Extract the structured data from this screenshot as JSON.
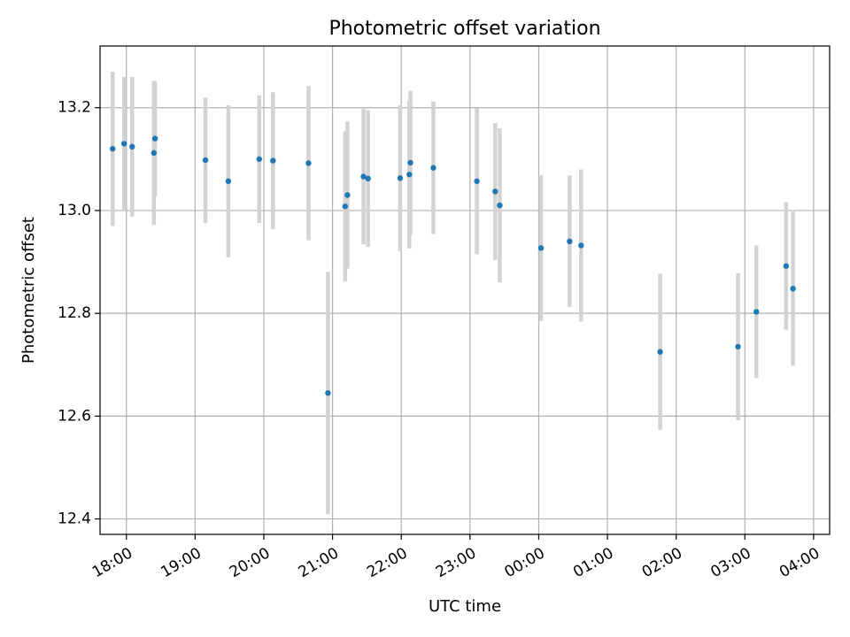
{
  "chart_data": {
    "type": "scatter",
    "title": "Photometric offset variation",
    "xlabel": "UTC time",
    "ylabel": "Photometric offset",
    "x_tick_labels": [
      "18:00",
      "19:00",
      "20:00",
      "21:00",
      "22:00",
      "23:00",
      "00:00",
      "01:00",
      "02:00",
      "03:00",
      "04:00"
    ],
    "y_tick_labels": [
      "12.4",
      "12.6",
      "12.8",
      "13.0",
      "13.2"
    ],
    "y_ticks": [
      12.4,
      12.6,
      12.8,
      13.0,
      13.2
    ],
    "ylim": [
      12.37,
      13.32
    ],
    "xlim": [
      "17:37",
      "04:14"
    ],
    "grid": true,
    "colors": {
      "points": "#1f77b4",
      "error_bars": "#d3d3d3",
      "grid": "#b0b0b0"
    },
    "points": [
      {
        "x": "17:48",
        "y": 13.12,
        "err": 0.15
      },
      {
        "x": "17:58",
        "y": 13.13,
        "err": 0.13
      },
      {
        "x": "18:05",
        "y": 13.124,
        "err": 0.136
      },
      {
        "x": "18:24",
        "y": 13.112,
        "err": 0.14
      },
      {
        "x": "18:25",
        "y": 13.14,
        "err": 0.112
      },
      {
        "x": "19:09",
        "y": 13.098,
        "err": 0.122
      },
      {
        "x": "19:29",
        "y": 13.057,
        "err": 0.148
      },
      {
        "x": "19:56",
        "y": 13.1,
        "err": 0.124
      },
      {
        "x": "20:08",
        "y": 13.097,
        "err": 0.133
      },
      {
        "x": "20:39",
        "y": 13.092,
        "err": 0.15
      },
      {
        "x": "20:56",
        "y": 12.645,
        "err": 0.236
      },
      {
        "x": "21:11",
        "y": 13.008,
        "err": 0.146
      },
      {
        "x": "21:13",
        "y": 13.03,
        "err": 0.143
      },
      {
        "x": "21:27",
        "y": 13.066,
        "err": 0.132
      },
      {
        "x": "21:31",
        "y": 13.062,
        "err": 0.133
      },
      {
        "x": "21:59",
        "y": 13.063,
        "err": 0.142
      },
      {
        "x": "22:07",
        "y": 13.07,
        "err": 0.144
      },
      {
        "x": "22:08",
        "y": 13.093,
        "err": 0.14
      },
      {
        "x": "22:28",
        "y": 13.083,
        "err": 0.129
      },
      {
        "x": "23:06",
        "y": 13.057,
        "err": 0.142
      },
      {
        "x": "23:22",
        "y": 13.037,
        "err": 0.133
      },
      {
        "x": "23:26",
        "y": 13.01,
        "err": 0.15
      },
      {
        "x": "00:02",
        "y": 12.927,
        "err": 0.142
      },
      {
        "x": "00:27",
        "y": 12.94,
        "err": 0.128
      },
      {
        "x": "00:37",
        "y": 12.932,
        "err": 0.148
      },
      {
        "x": "01:46",
        "y": 12.725,
        "err": 0.152
      },
      {
        "x": "02:54",
        "y": 12.735,
        "err": 0.143
      },
      {
        "x": "03:10",
        "y": 12.803,
        "err": 0.129
      },
      {
        "x": "03:36",
        "y": 12.892,
        "err": 0.124
      },
      {
        "x": "03:42",
        "y": 12.848,
        "err": 0.15
      }
    ]
  }
}
